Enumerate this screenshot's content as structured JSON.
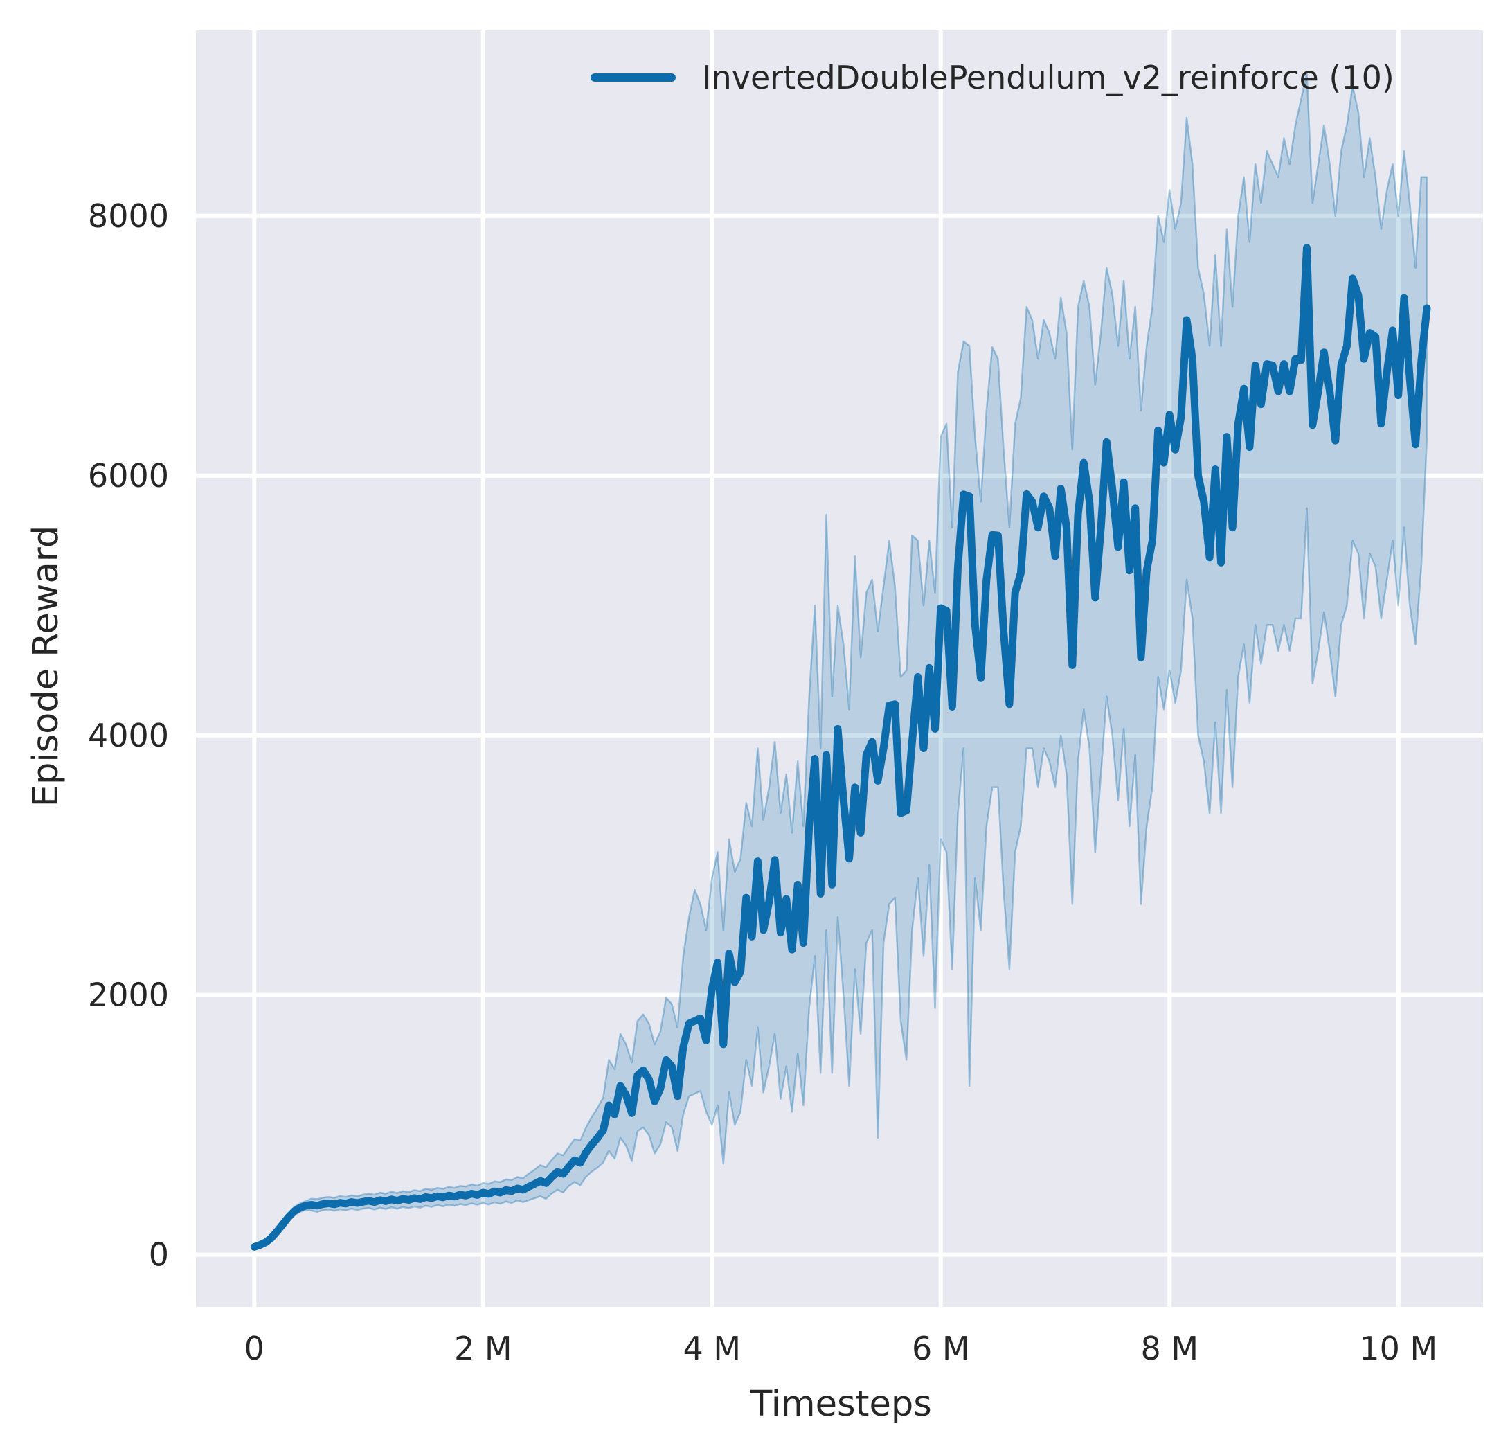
{
  "figure": {
    "background": "#ffffff",
    "plot_bg": "#e8e8f1",
    "grid_color": "#ffffff",
    "accent": "#0c6cac",
    "band_fill_opacity": 0.2,
    "band_edge_opacity": 0.35,
    "text_color": "#262626"
  },
  "legend": {
    "label": "InvertedDoublePendulum_v2_reinforce (10)"
  },
  "chart_data": {
    "type": "line",
    "title": "",
    "xlabel": "Timesteps",
    "ylabel": "Episode Reward",
    "grid": true,
    "legend_position": "upper center",
    "x_unit": "millions of timesteps",
    "xlim": [
      -0.51,
      10.74
    ],
    "ylim": [
      -402,
      9429
    ],
    "x_tick_values": [
      0,
      2,
      4,
      6,
      8,
      10
    ],
    "x_tick_labels": [
      "0",
      "2 M",
      "4 M",
      "6 M",
      "8 M",
      "10 M"
    ],
    "y_tick_values": [
      0,
      2000,
      4000,
      6000,
      8000
    ],
    "y_tick_labels": [
      "0",
      "2000",
      "4000",
      "6000",
      "8000"
    ],
    "series": [
      {
        "name": "InvertedDoublePendulum_v2_reinforce (10)",
        "x_start": 0,
        "x_step": 0.05,
        "mean": [
          60,
          75,
          95,
          130,
          180,
          235,
          290,
          335,
          362,
          378,
          385,
          378,
          390,
          396,
          388,
          400,
          394,
          406,
          398,
          408,
          415,
          405,
          420,
          412,
          426,
          416,
          430,
          422,
          436,
          428,
          444,
          436,
          450,
          442,
          456,
          448,
          462,
          455,
          470,
          460,
          478,
          468,
          488,
          478,
          498,
          490,
          510,
          500,
          524,
          545,
          568,
          552,
          598,
          638,
          622,
          678,
          728,
          708,
          788,
          848,
          898,
          958,
          1150,
          1080,
          1300,
          1230,
          1090,
          1380,
          1420,
          1350,
          1180,
          1280,
          1500,
          1450,
          1220,
          1600,
          1780,
          1800,
          1820,
          1650,
          2050,
          2250,
          1620,
          2320,
          2100,
          2180,
          2750,
          2450,
          3030,
          2500,
          2720,
          3040,
          2480,
          2740,
          2350,
          2850,
          2400,
          3300,
          3820,
          2780,
          3850,
          2850,
          4050,
          3500,
          3050,
          3600,
          3250,
          3850,
          3950,
          3650,
          3900,
          4230,
          4240,
          3400,
          3420,
          3950,
          4450,
          3900,
          4520,
          4050,
          4980,
          4960,
          4220,
          5300,
          5856,
          5840,
          4850,
          4440,
          5200,
          5544,
          5540,
          4800,
          4240,
          5100,
          5250,
          5858,
          5800,
          5600,
          5840,
          5750,
          5380,
          5900,
          5600,
          4540,
          5700,
          6100,
          5800,
          5060,
          5600,
          6260,
          5900,
          5450,
          5950,
          5270,
          5750,
          4600,
          5270,
          5500,
          6350,
          6100,
          6470,
          6200,
          6450,
          7200,
          6900,
          6000,
          5800,
          5370,
          6050,
          5330,
          6300,
          5600,
          6400,
          6670,
          6220,
          6850,
          6550,
          6860,
          6850,
          6650,
          6860,
          6650,
          6900,
          6890,
          7755,
          6390,
          6650,
          6950,
          6650,
          6270,
          6850,
          7000,
          7520,
          7390,
          6900,
          7100,
          7070,
          6400,
          6800,
          7120,
          6620,
          7370,
          6750,
          6240,
          6880,
          7290
        ],
        "band_low": [
          48,
          62,
          80,
          112,
          158,
          210,
          262,
          305,
          330,
          345,
          340,
          330,
          342,
          348,
          338,
          350,
          342,
          355,
          345,
          355,
          360,
          348,
          362,
          352,
          366,
          354,
          368,
          358,
          372,
          362,
          378,
          368,
          382,
          372,
          386,
          376,
          390,
          382,
          396,
          384,
          398,
          386,
          404,
          392,
          410,
          398,
          418,
          405,
          420,
          435,
          450,
          430,
          470,
          500,
          480,
          530,
          560,
          535,
          600,
          640,
          670,
          710,
          800,
          740,
          900,
          840,
          720,
          950,
          980,
          920,
          780,
          850,
          1020,
          980,
          800,
          1080,
          1220,
          1240,
          1260,
          1100,
          1000,
          1150,
          700,
          1250,
          1000,
          1100,
          1500,
          1300,
          1750,
          1250,
          1450,
          1700,
          1200,
          1450,
          1100,
          1550,
          1150,
          1900,
          2300,
          1400,
          2500,
          1400,
          2600,
          2000,
          1300,
          2200,
          1700,
          2400,
          2500,
          900,
          2400,
          2700,
          2750,
          1800,
          1500,
          2500,
          2900,
          2300,
          3000,
          1900,
          3200,
          3100,
          2200,
          3400,
          3900,
          1300,
          2900,
          2500,
          3300,
          3600,
          3600,
          2800,
          2200,
          3100,
          3300,
          3900,
          3900,
          3600,
          3900,
          3800,
          3600,
          4000,
          3700,
          2700,
          3800,
          4200,
          3900,
          3100,
          3700,
          4300,
          4000,
          3500,
          4050,
          3300,
          3850,
          2700,
          3300,
          3600,
          4450,
          4200,
          4500,
          4250,
          4500,
          5200,
          4900,
          4000,
          3800,
          3400,
          4100,
          3400,
          4350,
          3600,
          4450,
          4700,
          4250,
          4850,
          4550,
          4850,
          4850,
          4650,
          4850,
          4650,
          4900,
          4900,
          5750,
          4400,
          4650,
          4950,
          4650,
          4300,
          4850,
          5000,
          5500,
          5400,
          4900,
          5400,
          5300,
          4900,
          5200,
          5500,
          5000,
          5600,
          5000,
          4700,
          5300,
          6300
        ],
        "band_high": [
          72,
          90,
          112,
          150,
          205,
          262,
          320,
          368,
          395,
          412,
          432,
          428,
          440,
          445,
          438,
          452,
          445,
          458,
          450,
          462,
          470,
          462,
          478,
          470,
          485,
          475,
          490,
          482,
          498,
          490,
          508,
          500,
          515,
          508,
          522,
          515,
          530,
          525,
          542,
          532,
          552,
          545,
          565,
          560,
          580,
          575,
          598,
          590,
          625,
          655,
          690,
          675,
          730,
          780,
          765,
          830,
          890,
          880,
          980,
          1060,
          1130,
          1210,
          1500,
          1430,
          1700,
          1620,
          1480,
          1800,
          1850,
          1780,
          1620,
          1720,
          1980,
          1930,
          1750,
          2300,
          2600,
          2810,
          2700,
          2500,
          2900,
          3100,
          2500,
          3200,
          2950,
          3050,
          3480,
          3300,
          3900,
          3350,
          3600,
          3950,
          3400,
          3700,
          3250,
          3800,
          3300,
          4300,
          5000,
          3900,
          5700,
          4300,
          5000,
          4700,
          4200,
          5380,
          4600,
          5100,
          5200,
          4800,
          5150,
          5500,
          5150,
          4450,
          4500,
          5540,
          5500,
          5000,
          5500,
          5100,
          6300,
          6400,
          5600,
          6800,
          7035,
          7000,
          6300,
          5800,
          6500,
          6990,
          6900,
          6200,
          5600,
          6400,
          6600,
          7300,
          7200,
          6900,
          7200,
          7100,
          6900,
          7370,
          7100,
          6200,
          7300,
          7500,
          7300,
          6700,
          7100,
          7600,
          7400,
          7000,
          7500,
          6900,
          7300,
          6500,
          7000,
          7300,
          8000,
          7800,
          8200,
          7900,
          8100,
          8757,
          8400,
          7600,
          7400,
          7000,
          7700,
          7000,
          7900,
          7300,
          8000,
          8300,
          7800,
          8400,
          8100,
          8500,
          8400,
          8300,
          8600,
          8400,
          8700,
          8900,
          9100,
          8100,
          8400,
          8700,
          8400,
          8000,
          8500,
          8700,
          9000,
          8800,
          8300,
          8600,
          8300,
          7900,
          8200,
          8400,
          8000,
          8500,
          8100,
          7600,
          8300,
          8300
        ]
      }
    ]
  }
}
